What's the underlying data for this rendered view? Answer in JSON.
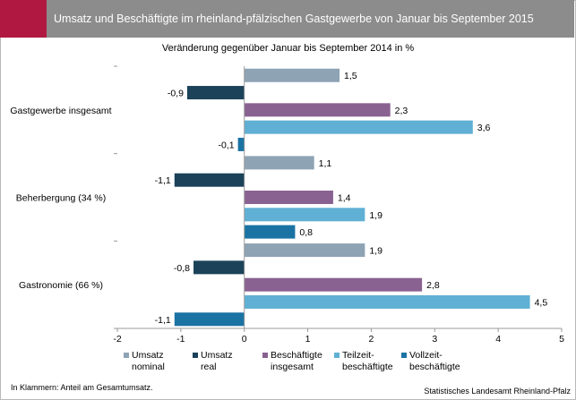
{
  "header": {
    "title": "Umsatz und Beschäftigte im rheinland-pfälzischen Gastgewerbe von Januar bis September 2015"
  },
  "footnote": "In Klammern: Anteil am Gesamtumsatz.",
  "source": "Statistisches Landesamt Rheinland-Pfalz",
  "chart_data": {
    "type": "bar",
    "orientation": "horizontal",
    "title": "Veränderung gegenüber Januar bis September 2014 in %",
    "xlim": [
      -2,
      5
    ],
    "xticks": [
      "-2",
      "-1",
      "0",
      "1",
      "2",
      "3",
      "4",
      "5"
    ],
    "categories": [
      "Gastgewerbe insgesamt",
      "Beherbergung (34 %)",
      "Gastronomie (66 %)"
    ],
    "series": [
      {
        "name": "Umsatz nominal",
        "legend_lines": [
          "Umsatz",
          "nominal"
        ],
        "color": "#8ea3b4",
        "values": [
          1.5,
          1.1,
          1.9
        ],
        "labels": [
          "1,5",
          "1,1",
          "1,9"
        ]
      },
      {
        "name": "Umsatz real",
        "legend_lines": [
          "Umsatz",
          "real"
        ],
        "color": "#1b4259",
        "values": [
          -0.9,
          -1.1,
          -0.8
        ],
        "labels": [
          "-0,9",
          "-1,1",
          "-0,8"
        ]
      },
      {
        "name": "Beschäftigte insgesamt",
        "legend_lines": [
          "Beschäftigte",
          "insgesamt"
        ],
        "color": "#896291",
        "values": [
          2.3,
          1.4,
          2.8
        ],
        "labels": [
          "2,3",
          "1,4",
          "2,8"
        ]
      },
      {
        "name": "Teilzeit-beschäftigte",
        "legend_lines": [
          "Teilzeit-",
          "beschäftigte"
        ],
        "color": "#5fb0d4",
        "values": [
          3.6,
          1.9,
          4.5
        ],
        "labels": [
          "3,6",
          "1,9",
          "4,5"
        ]
      },
      {
        "name": "Vollzeit-beschäftigte",
        "legend_lines": [
          "Vollzeit-",
          "beschäftigte"
        ],
        "color": "#1a73a3",
        "values": [
          -0.1,
          0.8,
          -1.1
        ],
        "labels": [
          "-0,1",
          "0,8",
          "-1,1"
        ]
      }
    ],
    "grid": false,
    "legend_position": "bottom"
  }
}
